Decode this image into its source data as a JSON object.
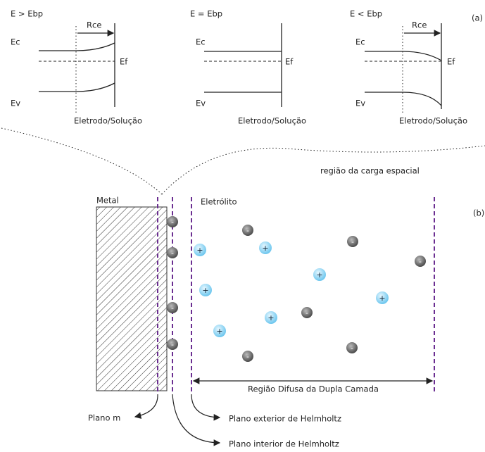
{
  "panel_a": {
    "label": "(a)",
    "diagrams": [
      {
        "title": "E > Ebp",
        "rce": "Rce",
        "ec": "Ec",
        "ef": "Ef",
        "ev": "Ev",
        "axis": "Eletrodo/Solução"
      },
      {
        "title": "E = Ebp",
        "ec": "Ec",
        "ef": "Ef",
        "ev": "Ev",
        "axis": "Eletrodo/Solução"
      },
      {
        "title": "E < Ebp",
        "rce": "Rce",
        "ec": "Ec",
        "ef": "Ef",
        "ev": "Ev",
        "axis": "Eletrodo/Solução"
      }
    ]
  },
  "panel_b": {
    "label": "(b)",
    "space_charge": "região da carga espacial",
    "metal": "Metal",
    "electrolyte": "Eletrólito",
    "diffuse_region": "Região Difusa da Dupla Camada",
    "planes": [
      "Plano m",
      "Plano exterior de Helmholtz",
      "Plano interior de Helmholtz"
    ],
    "ions": [
      "-",
      "-",
      "-",
      "-",
      "+",
      "+",
      "+",
      "+",
      "+",
      "+",
      "+",
      "-",
      "-",
      "-",
      "-",
      "-",
      "-"
    ]
  }
}
